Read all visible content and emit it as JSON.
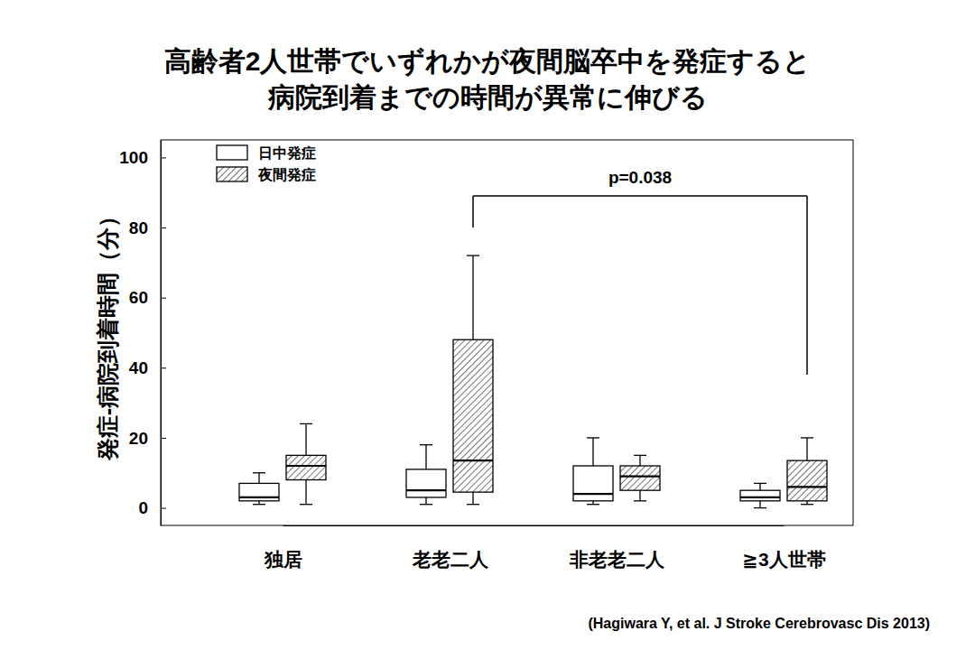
{
  "chart_data": {
    "type": "box",
    "title": [
      "高齢者2人世帯でいずれかが夜間脳卒中を発症すると",
      "病院到着までの時間が異常に伸びる"
    ],
    "y_label": "発症‐病院到着時間（分）",
    "categories": [
      "独居",
      "老老二人",
      "非老老二人",
      "≧3人世帯"
    ],
    "series": [
      {
        "name": "日中発症",
        "color": "#ffffff",
        "whisker_low": [
          1,
          1,
          1,
          0
        ],
        "q1": [
          2,
          3,
          2,
          2
        ],
        "median": [
          3,
          5,
          4,
          3
        ],
        "q3": [
          7,
          11,
          12,
          5
        ],
        "whisker_high": [
          10,
          18,
          20,
          7
        ]
      },
      {
        "name": "夜間発症",
        "color": "#555555",
        "whisker_low": [
          1,
          1,
          2,
          1
        ],
        "q1": [
          8,
          4.5,
          5,
          2
        ],
        "median": [
          12,
          13.5,
          9,
          6
        ],
        "q3": [
          15,
          48,
          12,
          13.5
        ],
        "whisker_high": [
          24,
          72,
          15,
          20
        ]
      }
    ],
    "ylim": [
      -5,
      105
    ],
    "yticks": [
      0,
      20,
      40,
      60,
      80,
      100
    ],
    "legend": "upper left",
    "annotations": [
      {
        "text": "p=0.038",
        "series": 1,
        "categories": [
          1,
          3
        ],
        "y": 89,
        "ends": [
          80,
          38
        ]
      }
    ],
    "source": "(Hagiwara Y, et al. J Stroke Cerebrovasc Dis 2013)"
  }
}
